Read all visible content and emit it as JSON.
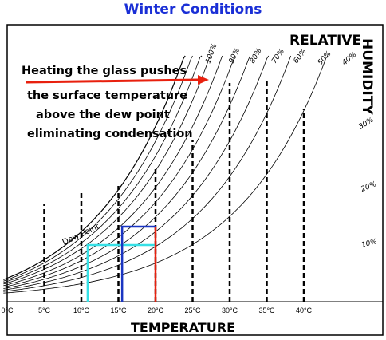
{
  "title": "Winter Conditions",
  "label_relative": "RELATIVE",
  "label_humidity": "HUMIDITY",
  "x_axis_title": "TEMPERATURE",
  "annotation_lines": [
    "Heating the glass  pushes",
    "the surface temperature",
    "above the dew point",
    "eliminating condensation"
  ],
  "dew_point_label": "Dew Point",
  "colors": {
    "title": "#1a2fd6",
    "arrow": "#e8200e",
    "dew_point_line": "#36e0e6",
    "dark_blue_line": "#1a35c2",
    "red_line": "#e8200e"
  },
  "chart_data": {
    "type": "line",
    "title": "Winter Conditions",
    "xlabel": "TEMPERATURE",
    "ylabel": "RELATIVE HUMIDITY",
    "x_ticks": [
      {
        "value": 0,
        "label": "0°C"
      },
      {
        "value": 5,
        "label": "5°C"
      },
      {
        "value": 10,
        "label": "10°C"
      },
      {
        "value": 15,
        "label": "15°C"
      },
      {
        "value": 20,
        "label": "20°C"
      },
      {
        "value": 25,
        "label": "25°C"
      },
      {
        "value": 30,
        "label": "30°C"
      },
      {
        "value": 35,
        "label": "35°C"
      },
      {
        "value": 40,
        "label": "40°C"
      }
    ],
    "xlim": [
      0,
      50
    ],
    "humidity_curves": [
      "100%",
      "90%",
      "80%",
      "70%",
      "60%",
      "50%",
      "40%",
      "30%",
      "20%",
      "10%"
    ],
    "dashed_verticals": [
      5,
      10,
      15,
      20,
      25,
      30,
      35,
      40
    ],
    "highlight_lines": [
      {
        "name": "dew-point",
        "x_start": 10.5,
        "x_end": 20,
        "color": "#36e0e6"
      },
      {
        "name": "dark-blue",
        "x_start": 15,
        "x_end": 20,
        "color": "#1a35c2"
      },
      {
        "name": "red",
        "x": 20,
        "color": "#e8200e"
      }
    ]
  }
}
